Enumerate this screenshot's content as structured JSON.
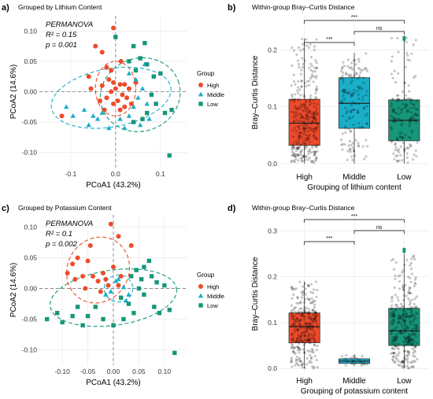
{
  "panels": [
    {
      "letter": "a)",
      "title": "Grouped by Lithium Content",
      "annotations": [
        "PERMANOVA",
        "R² = 0.15",
        "p = 0.001"
      ],
      "legend_title": "Group"
    },
    {
      "letter": "b)",
      "title": "Within-group Bray–Curtis Distance"
    },
    {
      "letter": "c)",
      "title": "Grouped by Potassium Content",
      "annotations": [
        "PERMANOVA",
        "R² = 0.1",
        "p = 0.002"
      ],
      "legend_title": "Group"
    },
    {
      "letter": "d)",
      "title": "Within-group Bray–Curtis Distance"
    }
  ],
  "colors": {
    "High": "#ee4b2b",
    "Middle": "#1aaec9",
    "Low": "#16967a",
    "panel_bg": "#ffffff",
    "grid": "#ebebeb",
    "refline": "#777777"
  },
  "chart_data": [
    {
      "type": "scatter",
      "title": "Grouped by Lithium Content",
      "xlabel": "PCoA1 (43.2%)",
      "ylabel": "PCoA2 (14.6%)",
      "xlim": [
        -0.17,
        0.16
      ],
      "ylim": [
        -0.125,
        0.125
      ],
      "xticks": [
        -0.1,
        0.0,
        0.1
      ],
      "xtick_labels": [
        "-0.1",
        "0.0",
        "0.1"
      ],
      "yticks": [
        -0.1,
        -0.05,
        0.0,
        0.05,
        0.1
      ],
      "ytick_labels": [
        "-0.10",
        "-0.05",
        "0.00",
        "0.05",
        "0.10"
      ],
      "legend": [
        "High",
        "Middle",
        "Low"
      ],
      "legend_position": "right",
      "grid": true,
      "series": [
        {
          "name": "High",
          "marker": "circle",
          "points": [
            [
              -0.005,
              0.105
            ],
            [
              -0.045,
              0.075
            ],
            [
              -0.03,
              0.065
            ],
            [
              -0.02,
              0.04
            ],
            [
              -0.01,
              0.035
            ],
            [
              -0.06,
              0.025
            ],
            [
              -0.015,
              0.02
            ],
            [
              -0.005,
              0.015
            ],
            [
              0.01,
              0.012
            ],
            [
              0.02,
              0.012
            ],
            [
              -0.03,
              0.01
            ],
            [
              0.03,
              0.005
            ],
            [
              0.0,
              0.005
            ],
            [
              -0.01,
              0.0
            ],
            [
              0.015,
              -0.005
            ],
            [
              0.025,
              -0.01
            ],
            [
              -0.02,
              -0.01
            ],
            [
              0.005,
              -0.015
            ],
            [
              0.035,
              -0.02
            ],
            [
              -0.005,
              -0.02
            ],
            [
              0.02,
              -0.025
            ],
            [
              -0.035,
              -0.015
            ],
            [
              0.01,
              -0.03
            ],
            [
              -0.025,
              -0.03
            ],
            [
              -0.055,
              0.005
            ],
            [
              -0.12,
              -0.04
            ],
            [
              0.045,
              0.015
            ],
            [
              0.012,
              0.05
            ]
          ]
        },
        {
          "name": "Middle",
          "marker": "triangle",
          "points": [
            [
              -0.095,
              -0.04
            ],
            [
              -0.11,
              -0.025
            ],
            [
              -0.07,
              -0.03
            ],
            [
              -0.05,
              -0.04
            ],
            [
              -0.03,
              -0.035
            ],
            [
              -0.06,
              -0.055
            ],
            [
              0.01,
              -0.045
            ],
            [
              0.03,
              -0.04
            ],
            [
              0.04,
              -0.025
            ],
            [
              0.05,
              -0.01
            ],
            [
              0.06,
              0.005
            ],
            [
              0.045,
              0.02
            ],
            [
              0.07,
              -0.02
            ],
            [
              0.02,
              -0.06
            ],
            [
              -0.015,
              -0.06
            ],
            [
              0.065,
              0.045
            ],
            [
              0.03,
              0.03
            ],
            [
              -0.04,
              -0.045
            ],
            [
              0.055,
              -0.055
            ],
            [
              0.075,
              -0.045
            ]
          ]
        },
        {
          "name": "Low",
          "marker": "square",
          "points": [
            [
              0.0,
              0.09
            ],
            [
              0.04,
              0.075
            ],
            [
              0.065,
              0.08
            ],
            [
              0.055,
              0.055
            ],
            [
              0.07,
              0.045
            ],
            [
              0.085,
              0.025
            ],
            [
              0.1,
              0.03
            ],
            [
              0.08,
              -0.005
            ],
            [
              0.09,
              -0.02
            ],
            [
              0.07,
              -0.035
            ],
            [
              0.06,
              -0.045
            ],
            [
              0.11,
              -0.035
            ],
            [
              0.04,
              -0.05
            ],
            [
              0.125,
              -0.03
            ],
            [
              0.045,
              0.035
            ],
            [
              0.12,
              -0.105
            ],
            [
              0.03,
              0.05
            ]
          ]
        }
      ],
      "ellipses": [
        {
          "group": "High",
          "cx": 0.0,
          "cy": 0.005,
          "rx": 0.045,
          "ry": 0.045,
          "angle": 0
        },
        {
          "group": "Middle",
          "cx": -0.01,
          "cy": -0.01,
          "rx": 0.135,
          "ry": 0.048,
          "angle": 10
        },
        {
          "group": "Low",
          "cx": 0.055,
          "cy": -0.005,
          "rx": 0.09,
          "ry": 0.06,
          "angle": 20
        }
      ]
    },
    {
      "type": "box",
      "title": "Within-group Bray–Curtis Distance",
      "xlabel": "Grouping of lithium content",
      "ylabel": "Bray–Curtis Distance",
      "categories": [
        "High",
        "Middle",
        "Low"
      ],
      "ylim": [
        -0.01,
        0.26
      ],
      "yticks": [
        0.0,
        0.1,
        0.2
      ],
      "ytick_labels": [
        "0.0",
        "0.1",
        "0.2"
      ],
      "grid": true,
      "boxes": [
        {
          "name": "High",
          "min": 0.0,
          "q1": 0.032,
          "median": 0.071,
          "q3": 0.113,
          "max": 0.22,
          "n_points": 320
        },
        {
          "name": "Middle",
          "min": 0.0,
          "q1": 0.062,
          "median": 0.106,
          "q3": 0.151,
          "max": 0.195,
          "n_points": 150
        },
        {
          "name": "Low",
          "min": 0.0,
          "q1": 0.04,
          "median": 0.076,
          "q3": 0.112,
          "max": 0.222,
          "n_points": 160
        }
      ],
      "outliers": [
        {
          "category": "Low",
          "values": [
            0.218,
            0.222
          ]
        }
      ],
      "comparisons": [
        {
          "pair": [
            "High",
            "Middle"
          ],
          "label": "***"
        },
        {
          "pair": [
            "Middle",
            "Low"
          ],
          "label": "ns"
        },
        {
          "pair": [
            "High",
            "Low"
          ],
          "label": "***"
        }
      ]
    },
    {
      "type": "scatter",
      "title": "Grouped by Potassium Content",
      "xlabel": "PCoA1 (43.2%)",
      "ylabel": "PCoA2 (14.6%)",
      "xlim": [
        -0.145,
        0.145
      ],
      "ylim": [
        -0.125,
        0.12
      ],
      "xticks": [
        -0.1,
        -0.05,
        0.0,
        0.05,
        0.1
      ],
      "xtick_labels": [
        "-0.10",
        "-0.05",
        "0.00",
        "0.05",
        "0.10"
      ],
      "yticks": [
        -0.1,
        -0.05,
        0.0,
        0.05,
        0.1
      ],
      "ytick_labels": [
        "-0.10",
        "-0.05",
        "0.00",
        "0.05",
        "0.10"
      ],
      "legend": [
        "High",
        "Middle",
        "Low"
      ],
      "legend_position": "right",
      "grid": true,
      "series": [
        {
          "name": "High",
          "marker": "circle",
          "points": [
            [
              -0.005,
              0.105
            ],
            [
              -0.07,
              0.05
            ],
            [
              -0.045,
              0.07
            ],
            [
              0.01,
              0.085
            ],
            [
              0.035,
              0.07
            ],
            [
              -0.09,
              0.025
            ],
            [
              -0.06,
              0.02
            ],
            [
              -0.04,
              0.02
            ],
            [
              -0.03,
              0.012
            ],
            [
              -0.015,
              0.015
            ],
            [
              -0.05,
              0.045
            ],
            [
              0.0,
              0.035
            ],
            [
              -0.08,
              0.04
            ],
            [
              -0.02,
              0.025
            ],
            [
              0.015,
              0.02
            ],
            [
              -0.075,
              0.015
            ],
            [
              -0.01,
              0.005
            ],
            [
              0.01,
              0.005
            ],
            [
              -0.025,
              -0.005
            ],
            [
              -0.055,
              0.0
            ]
          ]
        },
        {
          "name": "Middle",
          "marker": "triangle",
          "points": [
            [
              0.005,
              0.012
            ],
            [
              0.02,
              0.002
            ],
            [
              -0.015,
              -0.01
            ],
            [
              0.03,
              -0.01
            ],
            [
              0.01,
              0.015
            ],
            [
              0.025,
              -0.02
            ],
            [
              -0.005,
              -0.005
            ]
          ]
        },
        {
          "name": "Low",
          "marker": "square",
          "points": [
            [
              0.045,
              0.03
            ],
            [
              0.06,
              0.035
            ],
            [
              0.075,
              0.02
            ],
            [
              0.085,
              0.01
            ],
            [
              0.1,
              0.005
            ],
            [
              0.05,
              0.0
            ],
            [
              0.06,
              -0.01
            ],
            [
              0.08,
              -0.03
            ],
            [
              0.09,
              -0.04
            ],
            [
              0.11,
              -0.035
            ],
            [
              0.04,
              -0.04
            ],
            [
              0.02,
              -0.05
            ],
            [
              -0.02,
              -0.05
            ],
            [
              -0.05,
              -0.045
            ],
            [
              -0.08,
              -0.045
            ],
            [
              -0.11,
              -0.04
            ],
            [
              -0.13,
              -0.05
            ],
            [
              -0.1,
              -0.055
            ],
            [
              -0.07,
              -0.03
            ],
            [
              -0.035,
              -0.03
            ],
            [
              0.03,
              -0.025
            ],
            [
              0.055,
              0.015
            ],
            [
              0.12,
              -0.105
            ],
            [
              0.0,
              -0.06
            ],
            [
              -0.06,
              -0.06
            ],
            [
              0.07,
              0.045
            ],
            [
              0.035,
              0.02
            ],
            [
              0.015,
              -0.015
            ]
          ]
        }
      ],
      "ellipses": [
        {
          "group": "High",
          "cx": -0.03,
          "cy": 0.03,
          "rx": 0.06,
          "ry": 0.055,
          "angle": -30
        },
        {
          "group": "Middle",
          "cx": 0.01,
          "cy": 0.0,
          "rx": 0.028,
          "ry": 0.022,
          "angle": 0
        },
        {
          "group": "Low",
          "cx": 0.0,
          "cy": -0.015,
          "rx": 0.125,
          "ry": 0.045,
          "angle": 8
        }
      ]
    },
    {
      "type": "box",
      "title": "Within-group Bray–Curtis Distance",
      "xlabel": "Grouping of potassium content",
      "ylabel": "Bray–Curtis Distance",
      "categories": [
        "High",
        "Middle",
        "Low"
      ],
      "ylim": [
        -0.01,
        0.335
      ],
      "yticks": [
        0.0,
        0.1,
        0.2,
        0.3
      ],
      "ytick_labels": [
        "0.0",
        "0.1",
        "0.2",
        "0.3"
      ],
      "grid": true,
      "boxes": [
        {
          "name": "High",
          "min": 0.0,
          "q1": 0.056,
          "median": 0.091,
          "q3": 0.121,
          "max": 0.19,
          "n_points": 300
        },
        {
          "name": "Middle",
          "min": 0.005,
          "q1": 0.011,
          "median": 0.016,
          "q3": 0.021,
          "max": 0.03,
          "n_points": 25
        },
        {
          "name": "Low",
          "min": 0.0,
          "q1": 0.05,
          "median": 0.082,
          "q3": 0.131,
          "max": 0.25,
          "n_points": 320
        }
      ],
      "outliers": [
        {
          "category": "Low",
          "values": [
            0.255,
            0.26
          ]
        }
      ],
      "comparisons": [
        {
          "pair": [
            "High",
            "Middle"
          ],
          "label": "***"
        },
        {
          "pair": [
            "Middle",
            "Low"
          ],
          "label": "ns"
        },
        {
          "pair": [
            "High",
            "Low"
          ],
          "label": "***"
        }
      ]
    }
  ]
}
